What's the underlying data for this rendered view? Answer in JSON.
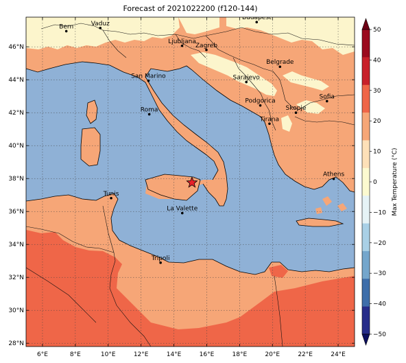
{
  "title": "Forecast of 2021022200 (f120-144)",
  "map": {
    "lon_range": [
      5,
      25
    ],
    "lat_range": [
      27.8,
      47.8
    ],
    "lon_ticks": [
      {
        "value": 6,
        "label": "6°E"
      },
      {
        "value": 8,
        "label": "8°E"
      },
      {
        "value": 10,
        "label": "10°E"
      },
      {
        "value": 12,
        "label": "12°E"
      },
      {
        "value": 14,
        "label": "14°E"
      },
      {
        "value": 16,
        "label": "16°E"
      },
      {
        "value": 18,
        "label": "18°E"
      },
      {
        "value": 20,
        "label": "20°E"
      },
      {
        "value": 22,
        "label": "22°E"
      },
      {
        "value": 24,
        "label": "24°E"
      }
    ],
    "lat_ticks": [
      {
        "value": 28,
        "label": "28°N"
      },
      {
        "value": 30,
        "label": "30°N"
      },
      {
        "value": 32,
        "label": "32°N"
      },
      {
        "value": 34,
        "label": "34°N"
      },
      {
        "value": 36,
        "label": "36°N"
      },
      {
        "value": 38,
        "label": "38°N"
      },
      {
        "value": 40,
        "label": "40°N"
      },
      {
        "value": 42,
        "label": "42°N"
      },
      {
        "value": 44,
        "label": "44°N"
      },
      {
        "value": 46,
        "label": "46°N"
      }
    ],
    "gridlines": true,
    "cities": [
      {
        "name": "Bern",
        "lon": 7.45,
        "lat": 46.95
      },
      {
        "name": "Vaduz",
        "lon": 9.52,
        "lat": 47.14
      },
      {
        "name": "Budapest",
        "lon": 19.04,
        "lat": 47.5
      },
      {
        "name": "Ljubljana",
        "lon": 14.5,
        "lat": 46.06
      },
      {
        "name": "Zagreb",
        "lon": 15.98,
        "lat": 45.81
      },
      {
        "name": "Belgrade",
        "lon": 20.46,
        "lat": 44.79
      },
      {
        "name": "San Marino",
        "lon": 12.45,
        "lat": 43.94
      },
      {
        "name": "Sarajevo",
        "lon": 18.41,
        "lat": 43.86
      },
      {
        "name": "Sofia",
        "lon": 23.32,
        "lat": 42.7
      },
      {
        "name": "Podgorica",
        "lon": 19.26,
        "lat": 42.44
      },
      {
        "name": "Skopje",
        "lon": 21.43,
        "lat": 42.0
      },
      {
        "name": "Roma",
        "lon": 12.5,
        "lat": 41.9
      },
      {
        "name": "Tirana",
        "lon": 19.82,
        "lat": 41.33
      },
      {
        "name": "Athens",
        "lon": 23.73,
        "lat": 37.98
      },
      {
        "name": "Tunis",
        "lon": 10.18,
        "lat": 36.81
      },
      {
        "name": "La Valette",
        "lon": 14.51,
        "lat": 35.9
      },
      {
        "name": "Tripoli",
        "lon": 13.19,
        "lat": 32.89
      }
    ],
    "marker": {
      "symbol": "star",
      "lon": 15.1,
      "lat": 37.75,
      "color": "#e8202a"
    }
  },
  "colorbar": {
    "label": "Max Temperature (°C)",
    "ticks": [
      "50",
      "40",
      "30",
      "20",
      "10",
      "0",
      "−10",
      "−20",
      "−30",
      "−40",
      "−50"
    ],
    "bins": [
      "#9b0a1e",
      "#c8202a",
      "#ef6648",
      "#f6a677",
      "#fde0b8",
      "#fcfad0",
      "#e6f3f6",
      "#a9d0e6",
      "#74a6cc",
      "#3e6eaa",
      "#262c8a"
    ],
    "arrow_top": "#6e0015",
    "arrow_bottom": "#0c0f60"
  },
  "fill_colors": {
    "sea": "#8fb1d6",
    "land_warm": "#f6a677",
    "land_hot": "#ef6648",
    "land_mild": "#fcf5cc"
  }
}
